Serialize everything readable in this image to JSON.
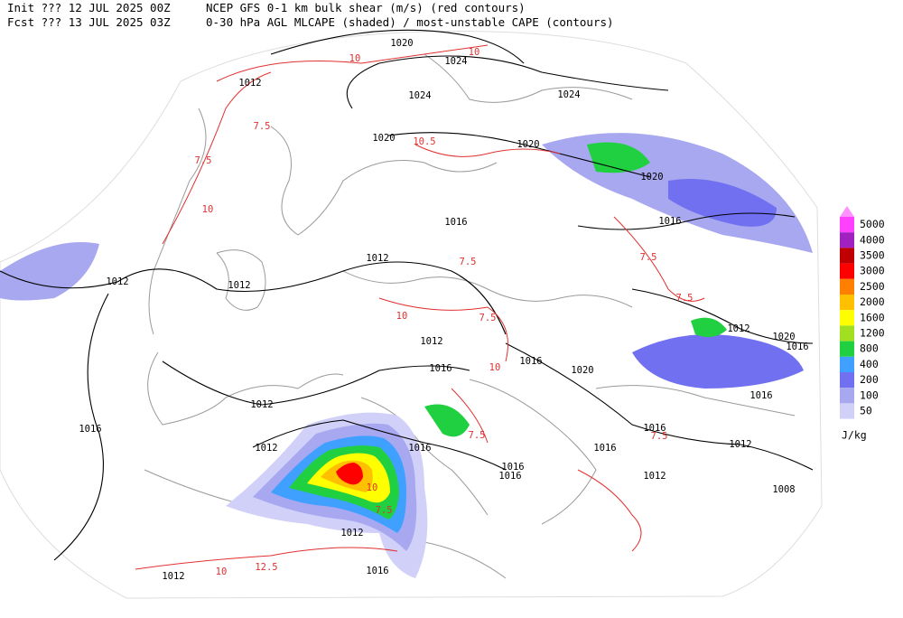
{
  "header": {
    "init": "Init  ??? 12 JUL 2025 00Z",
    "fcst": "Fcst ??? 13 JUL 2025 03Z",
    "title1": "NCEP GFS 0-1 km bulk shear (m/s) (red contours)",
    "title2": "0-30 hPa AGL MLCAPE (shaded) / most-unstable CAPE (contours)"
  },
  "colorbar": {
    "labels": [
      "5000",
      "4000",
      "3500",
      "3000",
      "2500",
      "2000",
      "1600",
      "1200",
      "800",
      "400",
      "200",
      "100",
      "50"
    ],
    "colors": [
      "#ff40ff",
      "#a020c0",
      "#c00000",
      "#ff0000",
      "#ff8000",
      "#ffc000",
      "#ffff00",
      "#a0e020",
      "#20d040",
      "#40a0ff",
      "#7070f0",
      "#a8a8f0",
      "#d0d0f8"
    ],
    "unit": "J/kg"
  },
  "isobar_labels": [
    "1020",
    "1024",
    "1012",
    "1024",
    "1024",
    "1020",
    "1020",
    "1020",
    "1016",
    "1016",
    "1012",
    "1012",
    "1012",
    "1012",
    "1020",
    "1016",
    "1012",
    "1016",
    "1016",
    "1020",
    "1012",
    "1016",
    "1016",
    "1016",
    "1012",
    "1016",
    "1016",
    "1012",
    "1016",
    "1016",
    "1012",
    "1008",
    "1012",
    "1012",
    "1016"
  ],
  "shear_labels": [
    "10",
    "10",
    "7.5",
    "10.5",
    "7.5",
    "10",
    "7.5",
    "10",
    "7.5",
    "10",
    "7.5",
    "7.5",
    "7.5",
    "7.5",
    "7.5",
    "12.5",
    "10",
    "10"
  ]
}
